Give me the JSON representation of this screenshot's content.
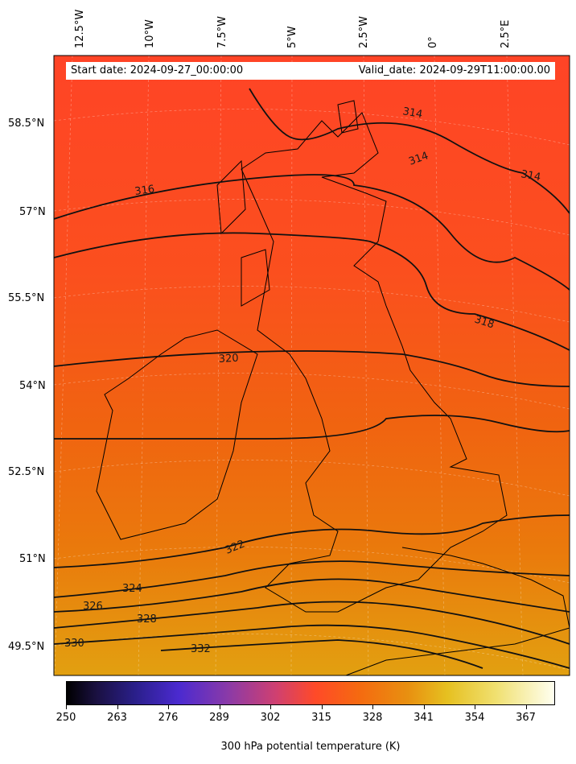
{
  "header": {
    "start_date": "Start date: 2024-09-27_00:00:00",
    "valid_date": "Valid_date: 2024-09-29T11:00:00.00"
  },
  "longitude_labels": [
    "12.5°W",
    "10°W",
    "7.5°W",
    "5°W",
    "2.5°W",
    "0°",
    "2.5°E"
  ],
  "latitude_labels": [
    "58.5°N",
    "57°N",
    "55.5°N",
    "54°N",
    "52.5°N",
    "51°N",
    "49.5°N"
  ],
  "contour_labels": [
    "314",
    "314",
    "314",
    "316",
    "318",
    "320",
    "322",
    "324",
    "326",
    "328",
    "330",
    "332"
  ],
  "colorbar": {
    "title": "300 hPa potential temperature (K)",
    "ticks": [
      "250",
      "263",
      "276",
      "289",
      "302",
      "315",
      "328",
      "341",
      "354",
      "367"
    ]
  },
  "colors": {
    "north": "#ff4422",
    "middle": "#ee6a0a",
    "south": "#e39a10"
  }
}
